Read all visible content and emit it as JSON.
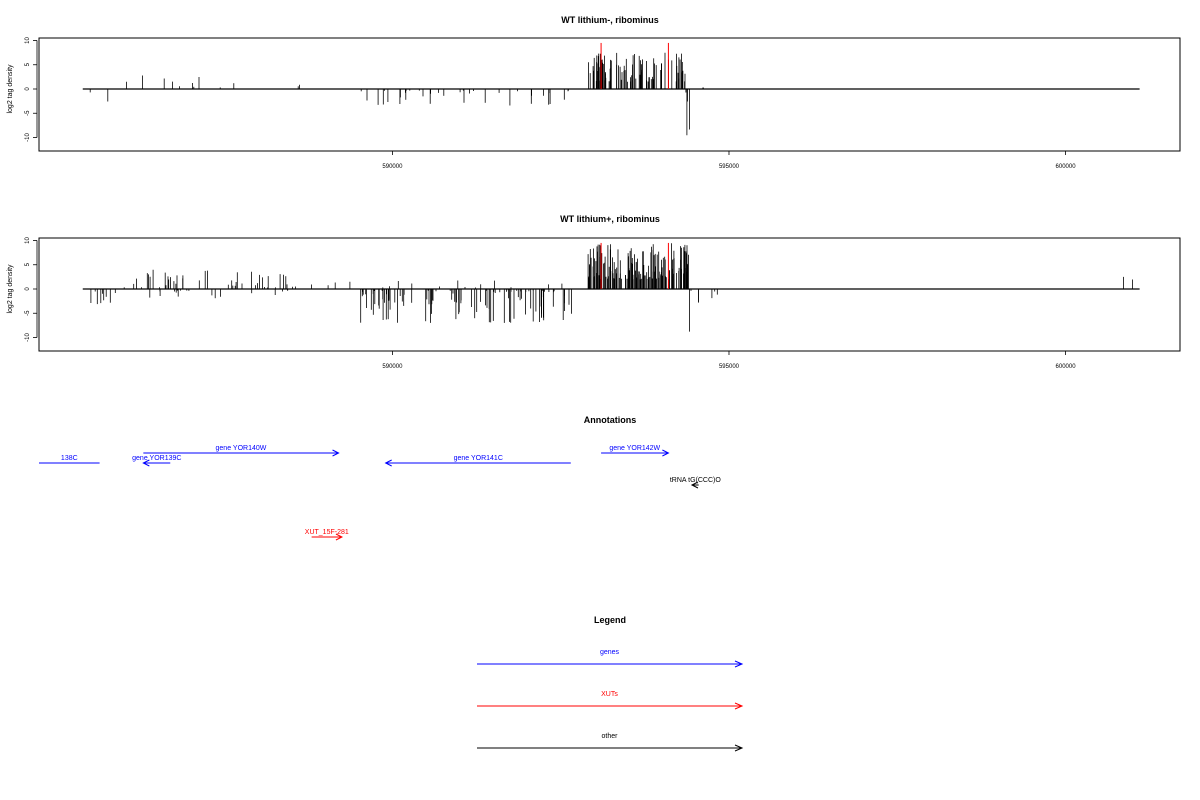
{
  "chart_data": [
    {
      "type": "bar",
      "title": "WT lithium-, ribominus",
      "ylabel": "log2 tag density",
      "xlabel": "",
      "xlim": [
        584750,
        601700
      ],
      "ylim": [
        -12,
        10
      ],
      "xticks": [
        590000,
        595000,
        600000
      ],
      "xtick_labels": [
        "590000",
        "595000",
        "600000"
      ],
      "yticks": [
        10,
        5,
        0,
        -5,
        -10
      ],
      "ytick_labels": [
        "10",
        "5",
        "0",
        "-5",
        "-10"
      ],
      "baseline": {
        "from": 585400,
        "to": 601100,
        "value": 0
      },
      "marker_color": "#ff0000",
      "markers": [
        {
          "x": 593100,
          "top": 9.5
        },
        {
          "x": 594100,
          "top": 9.5
        }
      ],
      "series": [
        {
          "region": [
            585450,
            585700
          ],
          "density": 0.08,
          "sign": -1,
          "max": 3.5,
          "seed": 11
        },
        {
          "region": [
            585700,
            586000
          ],
          "density": 0.03,
          "sign": -1,
          "max": 3.5,
          "seed": 12
        },
        {
          "region": [
            586000,
            586200
          ],
          "density": 0.05,
          "sign": 1,
          "max": 4.5,
          "seed": 13
        },
        {
          "region": [
            586200,
            588400
          ],
          "density": 0.06,
          "sign": 1,
          "max": 3.5,
          "seed": 14
        },
        {
          "region": [
            588400,
            589300
          ],
          "density": 0.04,
          "sign": 1,
          "max": 1.5,
          "seed": 15
        },
        {
          "region": [
            589400,
            592700
          ],
          "density": 0.16,
          "sign": -1,
          "max": 3.5,
          "seed": 16
        },
        {
          "region": [
            592900,
            594350
          ],
          "density": 1.0,
          "sign": 1,
          "max": 7.5,
          "min": 1.5,
          "seed": 17
        },
        {
          "region": [
            594350,
            594450
          ],
          "density": 0.6,
          "sign": -1,
          "max": 11,
          "seed": 18
        },
        {
          "region": [
            594600,
            594650
          ],
          "density": 0.5,
          "sign": 1,
          "max": 2.5,
          "seed": 19
        }
      ]
    },
    {
      "type": "bar",
      "title": "WT lithium+, ribominus",
      "ylabel": "log2 tag density",
      "xlabel": "",
      "xlim": [
        584750,
        601700
      ],
      "ylim": [
        -12,
        10
      ],
      "xticks": [
        590000,
        595000,
        600000
      ],
      "xtick_labels": [
        "590000",
        "595000",
        "600000"
      ],
      "yticks": [
        10,
        5,
        0,
        -5,
        -10
      ],
      "ytick_labels": [
        "10",
        "5",
        "0",
        "-5",
        "-10"
      ],
      "baseline": {
        "from": 585400,
        "to": 601100,
        "value": 0
      },
      "marker_color": "#ff0000",
      "markers": [
        {
          "x": 593100,
          "top": 9.5
        },
        {
          "x": 594100,
          "top": 9.5
        }
      ],
      "series": [
        {
          "region": [
            585450,
            586000
          ],
          "density": 0.25,
          "sign": -1,
          "max": 3.5,
          "seed": 21
        },
        {
          "region": [
            586000,
            588600
          ],
          "density": 0.25,
          "sign": 1,
          "max": 4,
          "seed": 22
        },
        {
          "region": [
            586200,
            588600
          ],
          "density": 0.12,
          "sign": -1,
          "max": 2.5,
          "seed": 23
        },
        {
          "region": [
            588600,
            589400
          ],
          "density": 0.08,
          "sign": 1,
          "max": 2.5,
          "seed": 24
        },
        {
          "region": [
            589500,
            592700
          ],
          "density": 0.5,
          "sign": -1,
          "max": 7,
          "seed": 25
        },
        {
          "region": [
            589500,
            592700
          ],
          "density": 0.06,
          "sign": 1,
          "max": 2,
          "seed": 26
        },
        {
          "region": [
            592900,
            594400
          ],
          "density": 1.5,
          "sign": 1,
          "max": 9.5,
          "min": 2,
          "seed": 27
        },
        {
          "region": [
            594400,
            594450
          ],
          "density": 0.6,
          "sign": -1,
          "max": 12,
          "seed": 28
        },
        {
          "region": [
            594450,
            594850
          ],
          "density": 0.2,
          "sign": -1,
          "max": 3,
          "seed": 29
        },
        {
          "region": [
            600800,
            601050
          ],
          "density": 0.1,
          "sign": 1,
          "max": 2.5,
          "seed": 30
        }
      ]
    }
  ],
  "annotations": {
    "title": "Annotations",
    "items": [
      {
        "label": "138C",
        "color": "#0000ff",
        "from": 584750,
        "to": 585650,
        "lane": "top-lower",
        "arrow": "none"
      },
      {
        "label": "gene YOR139C",
        "color": "#0000ff",
        "from": 586700,
        "to": 586300,
        "lane": "top-lower",
        "arrow": "left"
      },
      {
        "label": "gene YOR140W",
        "color": "#0000ff",
        "from": 586300,
        "to": 589200,
        "lane": "top-upper",
        "arrow": "right"
      },
      {
        "label": "gene YOR141C",
        "color": "#0000ff",
        "from": 592650,
        "to": 589900,
        "lane": "top-lower",
        "arrow": "left"
      },
      {
        "label": "gene YOR142W",
        "color": "#0000ff",
        "from": 593100,
        "to": 594100,
        "lane": "top-upper",
        "arrow": "right"
      },
      {
        "label": "tRNA tG(CCC)O",
        "color": "#000000",
        "from": 594550,
        "to": 594450,
        "lane": "middle",
        "arrow": "left"
      },
      {
        "label": "XUT_15F-281",
        "color": "#ff0000",
        "from": 588800,
        "to": 589250,
        "lane": "bottom",
        "arrow": "right"
      }
    ]
  },
  "legend": {
    "title": "Legend",
    "items": [
      {
        "label": "genes",
        "color": "#0000ff"
      },
      {
        "label": "XUTs",
        "color": "#ff0000"
      },
      {
        "label": "other",
        "color": "#000000"
      }
    ]
  }
}
